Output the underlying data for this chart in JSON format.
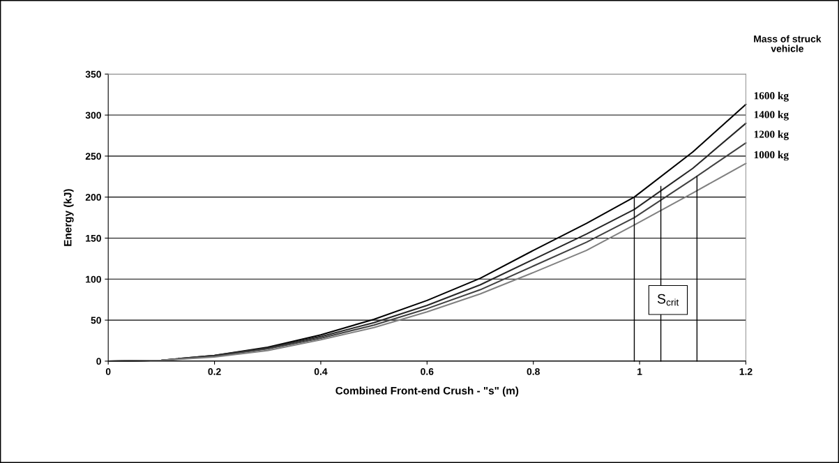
{
  "chart_data": {
    "type": "line",
    "xlabel": "Combined Front-end Crush - \"s\" (m)",
    "ylabel": "Energy (kJ)",
    "legend_title": "Mass of struck vehicle",
    "x": [
      0,
      0.1,
      0.2,
      0.3,
      0.4,
      0.5,
      0.6,
      0.7,
      0.8,
      0.9,
      0.99,
      1.1,
      1.2
    ],
    "series": [
      {
        "name": "1600 kg",
        "color": "#000000",
        "values": [
          0,
          1,
          7,
          17,
          32,
          51,
          74,
          101,
          135,
          168,
          200,
          255,
          313
        ]
      },
      {
        "name": "1400 kg",
        "color": "#262626",
        "values": [
          0,
          1,
          7,
          16,
          30,
          47,
          68,
          93,
          124,
          155,
          185,
          235,
          290
        ]
      },
      {
        "name": "1200 kg",
        "color": "#404040",
        "values": [
          0,
          1,
          6,
          15,
          28,
          44,
          64,
          87,
          116,
          145,
          175,
          222,
          266
        ]
      },
      {
        "name": "1000 kg",
        "color": "#808080",
        "values": [
          0,
          1,
          5,
          13,
          26,
          41,
          60,
          82,
          108,
          135,
          166,
          205,
          241
        ]
      },
      {
        "color": "#000000",
        "x": [
          0.99,
          0.99
        ],
        "values": [
          0,
          200
        ]
      },
      {
        "color": "#000000",
        "x": [
          1.04,
          1.04
        ],
        "values": [
          0,
          213
        ]
      },
      {
        "color": "#000000",
        "x": [
          1.108,
          1.108
        ],
        "values": [
          0,
          225
        ]
      }
    ],
    "annotations": [
      "S$_{crit}$"
    ],
    "xlim": [
      0,
      1.2
    ],
    "xticks": [
      0,
      0.2,
      0.4,
      0.6,
      0.8,
      1,
      1.2
    ],
    "ylim": [
      0,
      350
    ],
    "yticks": [
      0,
      50,
      100,
      150,
      200,
      250,
      300,
      350
    ],
    "grid": "y",
    "legend": "right",
    "marker": "none",
    "line_style": "solid"
  }
}
